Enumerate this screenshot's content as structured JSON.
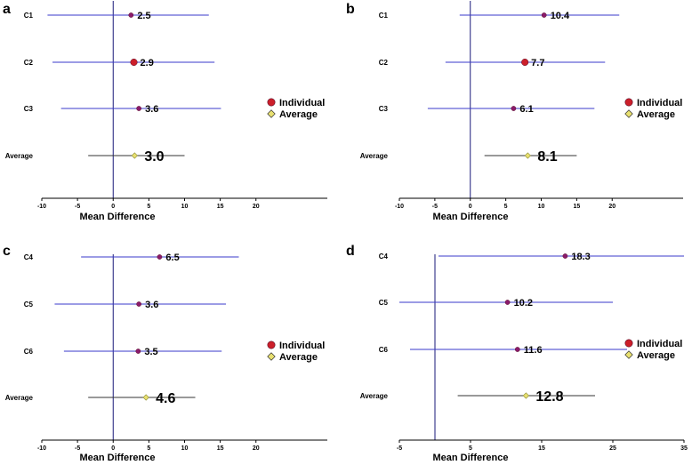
{
  "colors": {
    "ci_individual": "#3a3acb",
    "ci_average": "#333333",
    "zero_line": "#1a1a7a",
    "marker_individual": "#cc1f2a",
    "marker_individual_dot": "#8b1a6b",
    "marker_average": "#e8e070",
    "axis": "#000000"
  },
  "legend": {
    "individual": "Individual",
    "average": "Average"
  },
  "chart_data": [
    {
      "panel": "a",
      "type": "forest",
      "xlabel": "Mean Difference",
      "xlim": [
        -10,
        30
      ],
      "ticks": [
        -10,
        -5,
        0,
        5,
        10,
        15,
        20
      ],
      "tick_labels": [
        "-10",
        "-5",
        "0",
        "5",
        "10",
        "15",
        "20"
      ],
      "rows": [
        {
          "label": "C1",
          "mean": 2.5,
          "lower": -9.2,
          "upper": 13.4,
          "value_label": "2.5",
          "kind": "individual"
        },
        {
          "label": "C2",
          "mean": 2.9,
          "lower": -8.5,
          "upper": 14.2,
          "value_label": "2.9",
          "kind": "individual",
          "big": true
        },
        {
          "label": "C3",
          "mean": 3.6,
          "lower": -7.3,
          "upper": 15.1,
          "value_label": "3.6",
          "kind": "individual"
        },
        {
          "label": "Average",
          "mean": 3.0,
          "lower": -3.5,
          "upper": 10.0,
          "value_label": "3.0",
          "kind": "average"
        }
      ]
    },
    {
      "panel": "b",
      "type": "forest",
      "xlabel": "Mean Difference",
      "xlim": [
        -10,
        30
      ],
      "ticks": [
        -10,
        -5,
        0,
        5,
        10,
        15,
        20
      ],
      "tick_labels": [
        "-10",
        "-5",
        "0",
        "5",
        "10",
        "15",
        "20"
      ],
      "rows": [
        {
          "label": "C1",
          "mean": 10.4,
          "lower": -1.5,
          "upper": 21.0,
          "value_label": "10.4",
          "kind": "individual"
        },
        {
          "label": "C2",
          "mean": 7.7,
          "lower": -3.5,
          "upper": 19.0,
          "value_label": "7.7",
          "kind": "individual",
          "big": true
        },
        {
          "label": "C3",
          "mean": 6.1,
          "lower": -6.0,
          "upper": 17.5,
          "value_label": "6.1",
          "kind": "individual"
        },
        {
          "label": "Average",
          "mean": 8.1,
          "lower": 2.0,
          "upper": 15.0,
          "value_label": "8.1",
          "kind": "average"
        }
      ]
    },
    {
      "panel": "c",
      "type": "forest",
      "xlabel": "Mean Difference",
      "xlim": [
        -10,
        30
      ],
      "ticks": [
        -10,
        -5,
        0,
        5,
        10,
        15,
        20
      ],
      "tick_labels": [
        "-10",
        "-5",
        "0",
        "5",
        "10",
        "15",
        "20"
      ],
      "rows": [
        {
          "label": "C4",
          "mean": 6.5,
          "lower": -4.5,
          "upper": 17.6,
          "value_label": "6.5",
          "kind": "individual"
        },
        {
          "label": "C5",
          "mean": 3.6,
          "lower": -8.2,
          "upper": 15.8,
          "value_label": "3.6",
          "kind": "individual"
        },
        {
          "label": "C6",
          "mean": 3.5,
          "lower": -6.9,
          "upper": 15.2,
          "value_label": "3.5",
          "kind": "individual"
        },
        {
          "label": "Average",
          "mean": 4.6,
          "lower": -3.5,
          "upper": 11.5,
          "value_label": "4.6",
          "kind": "average"
        }
      ]
    },
    {
      "panel": "d",
      "type": "forest",
      "xlabel": "Mean Difference",
      "xlim": [
        -5,
        35
      ],
      "ticks": [
        -5,
        5,
        15,
        25,
        35
      ],
      "tick_labels": [
        "-5",
        "5",
        "15",
        "25",
        "35"
      ],
      "rows": [
        {
          "label": "C4",
          "mean": 18.3,
          "lower": 0.5,
          "upper": 35.0,
          "value_label": "18.3",
          "kind": "individual"
        },
        {
          "label": "C5",
          "mean": 10.2,
          "lower": -5.0,
          "upper": 25.0,
          "value_label": "10.2",
          "kind": "individual"
        },
        {
          "label": "C6",
          "mean": 11.6,
          "lower": -3.5,
          "upper": 27.0,
          "value_label": "11.6",
          "kind": "individual"
        },
        {
          "label": "Average",
          "mean": 12.8,
          "lower": 3.2,
          "upper": 22.5,
          "value_label": "12.8",
          "kind": "average"
        }
      ]
    }
  ]
}
